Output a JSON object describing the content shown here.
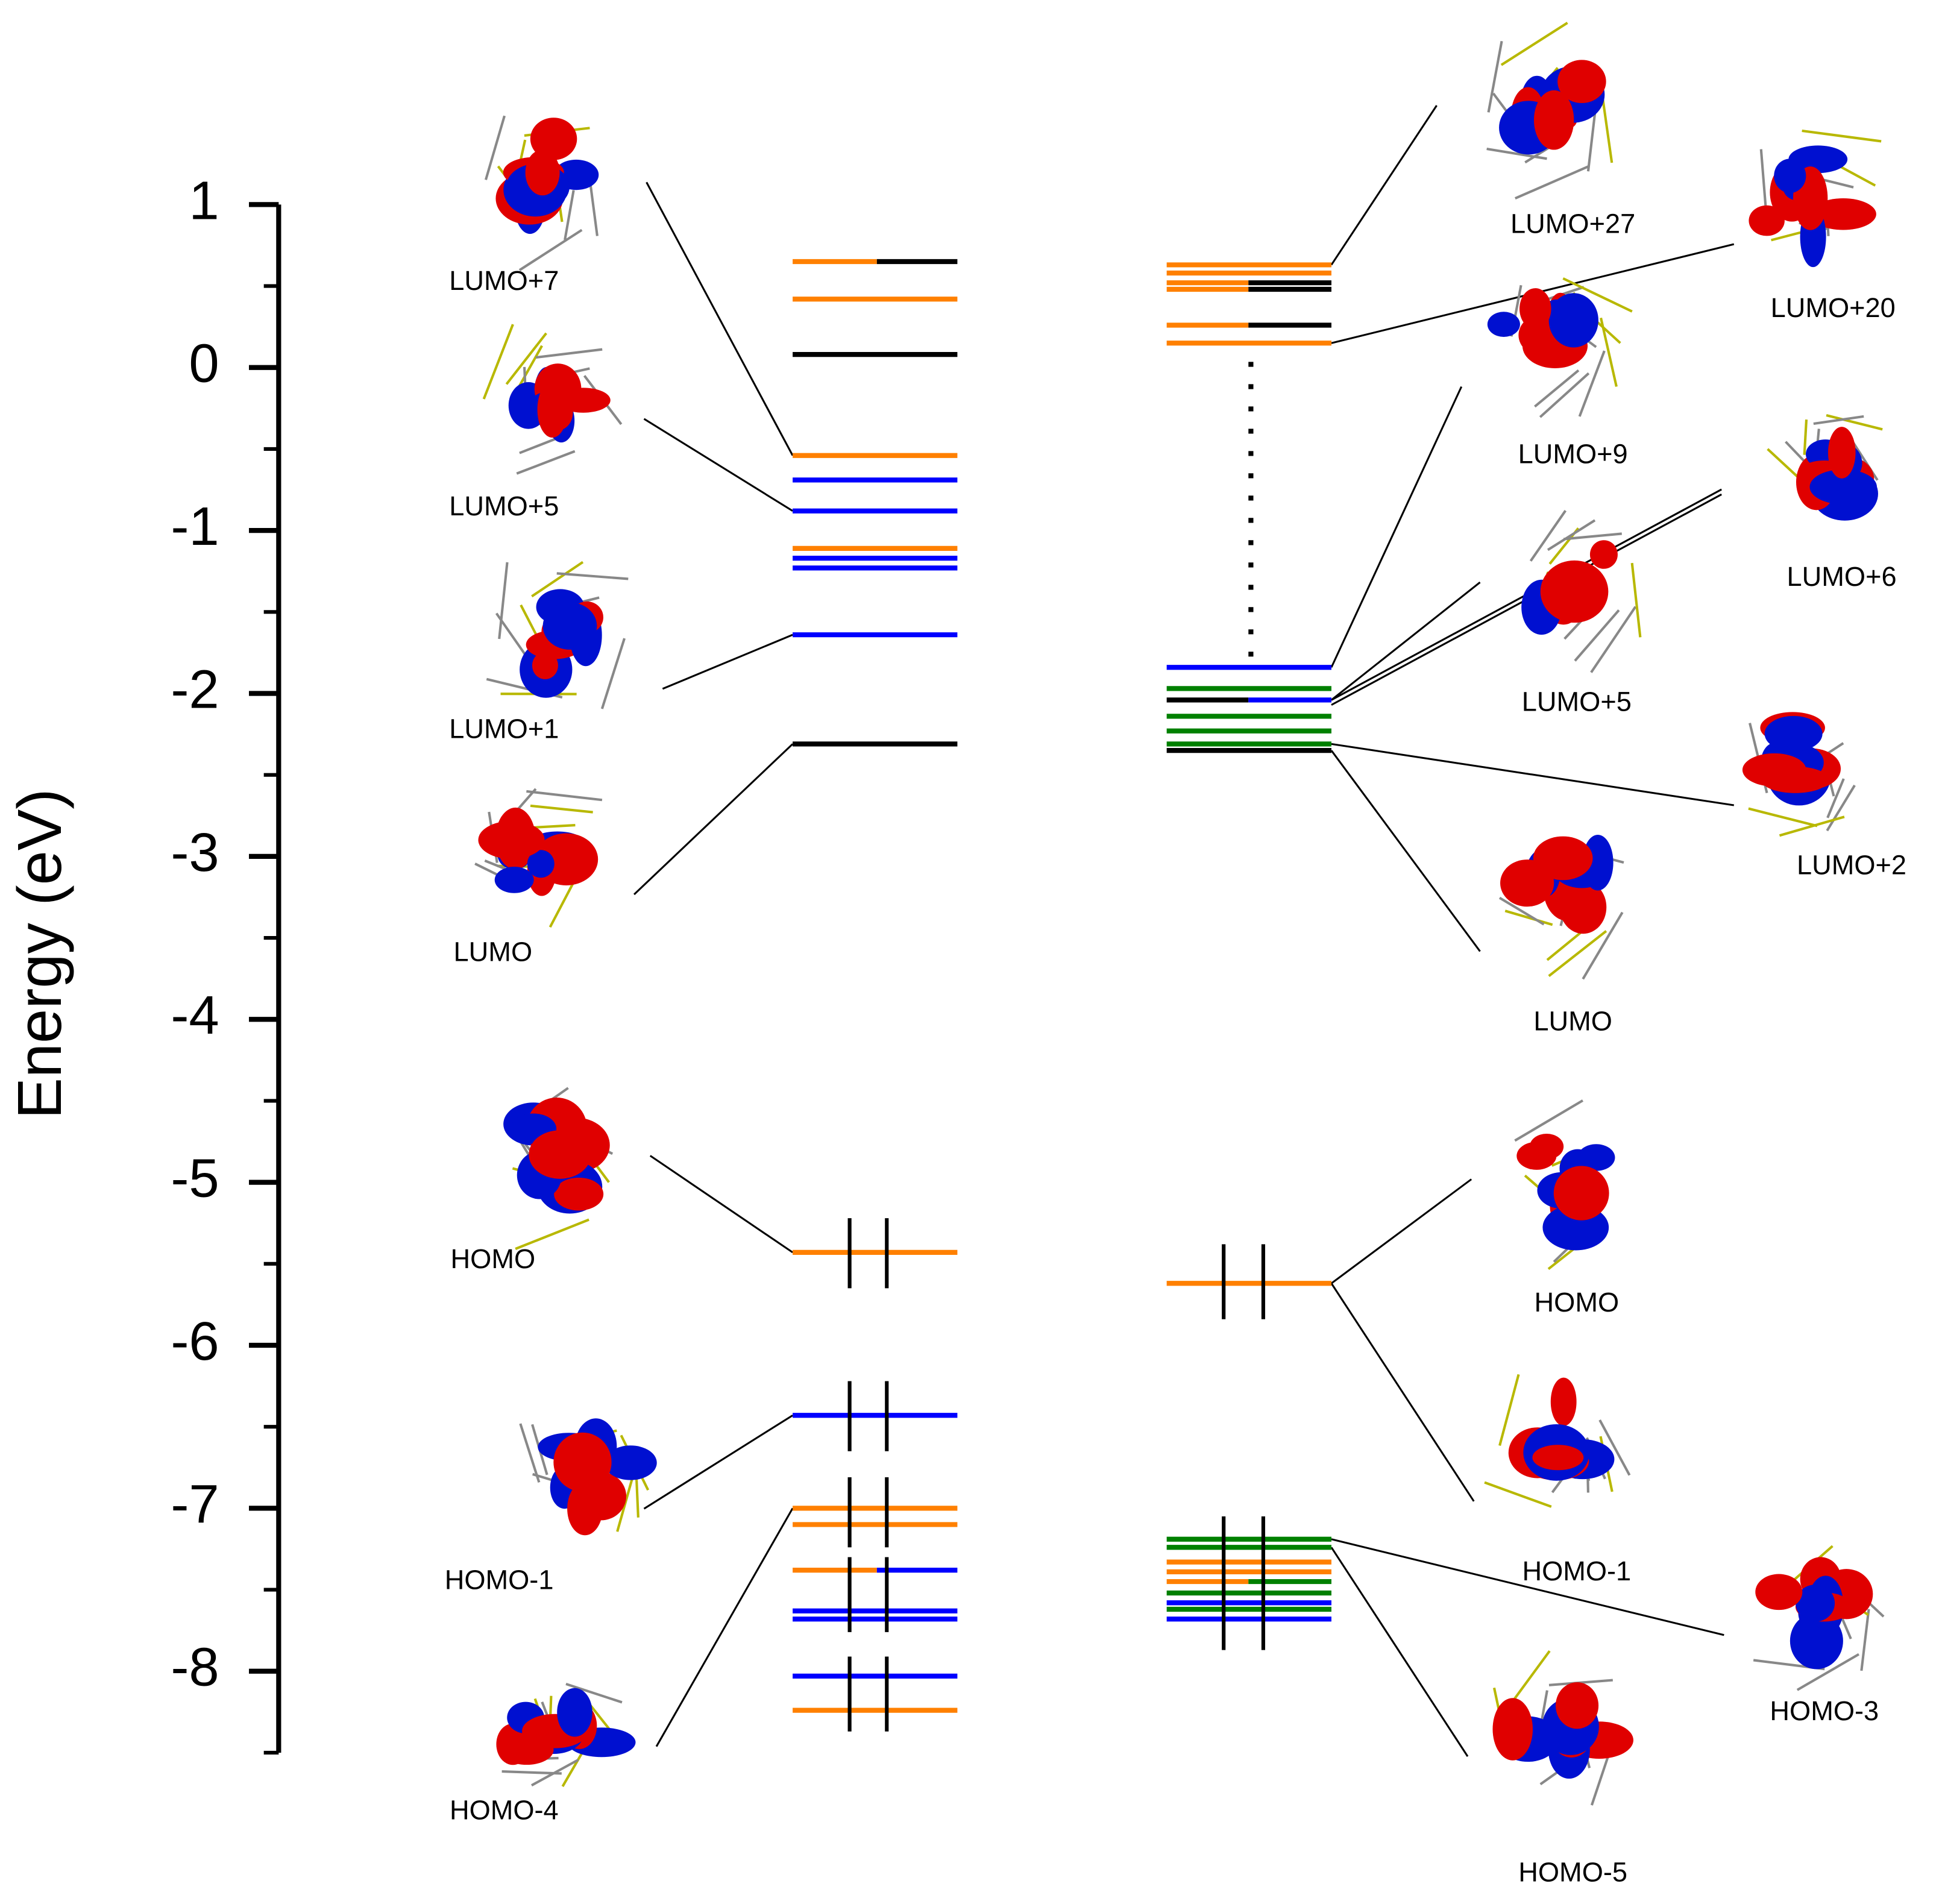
{
  "chart_data": {
    "type": "energy-levels",
    "ylabel": "Energy (eV)",
    "ylim": [
      -8.5,
      1
    ],
    "yticks": [
      1,
      0,
      -1,
      -2,
      -3,
      -4,
      -5,
      -6,
      -7,
      -8
    ],
    "yminorticks": [
      0.5,
      -0.5,
      -1.5,
      -2.5,
      -3.5,
      -4.5,
      -5.5,
      -6.5,
      -7.5,
      -8.5
    ],
    "columns": [
      {
        "levels": [
          {
            "energy": 0.65,
            "colors": [
              "#ff8000",
              "#000000"
            ]
          },
          {
            "energy": 0.42,
            "color": "#ff8000"
          },
          {
            "energy": 0.08,
            "color": "#000000"
          },
          {
            "energy": -0.54,
            "color": "#ff8000"
          },
          {
            "energy": -0.69,
            "color": "#0000ff"
          },
          {
            "energy": -0.88,
            "color": "#0000ff"
          },
          {
            "energy": -1.11,
            "color": "#ff8000"
          },
          {
            "energy": -1.17,
            "color": "#0000ff"
          },
          {
            "energy": -1.23,
            "color": "#0000ff"
          },
          {
            "energy": -1.64,
            "color": "#0000ff"
          },
          {
            "energy": -2.31,
            "color": "#000000"
          },
          {
            "energy": -5.43,
            "color": "#ff8000"
          },
          {
            "energy": -6.43,
            "color": "#0000ff"
          },
          {
            "energy": -7.0,
            "color": "#ff8000"
          },
          {
            "energy": -7.1,
            "color": "#ff8000"
          },
          {
            "energy": -7.38,
            "colors": [
              "#ff8000",
              "#0000ff"
            ]
          },
          {
            "energy": -7.63,
            "color": "#0000ff"
          },
          {
            "energy": -7.68,
            "color": "#0000ff"
          },
          {
            "energy": -8.03,
            "color": "#0000ff"
          },
          {
            "energy": -8.24,
            "color": "#ff8000"
          }
        ],
        "electron_pairs": [
          [
            -5.22,
            -5.65
          ],
          [
            -6.22,
            -6.65
          ],
          [
            -6.81,
            -7.24
          ],
          [
            -7.3,
            -7.76
          ],
          [
            -7.91,
            -8.37
          ]
        ],
        "orbitals": [
          "LUMO+7",
          "LUMO+5",
          "LUMO+1",
          "LUMO",
          "HOMO",
          "HOMO-1",
          "HOMO-4"
        ]
      },
      {
        "levels": [
          {
            "energy": 0.63,
            "color": "#ff8000"
          },
          {
            "energy": 0.58,
            "color": "#ff8000"
          },
          {
            "energy": 0.52,
            "colors": [
              "#ff8000",
              "#000000"
            ]
          },
          {
            "energy": 0.48,
            "colors": [
              "#ff8000",
              "#000000"
            ]
          },
          {
            "energy": 0.26,
            "colors": [
              "#ff8000",
              "#000000"
            ]
          },
          {
            "energy": 0.15,
            "color": "#ff8000"
          },
          {
            "energy": -1.84,
            "color": "#0000ff"
          },
          {
            "energy": -1.97,
            "color": "#008000"
          },
          {
            "energy": -2.04,
            "colors": [
              "#000000",
              "#0000ff"
            ]
          },
          {
            "energy": -2.14,
            "color": "#008000"
          },
          {
            "energy": -2.23,
            "color": "#008000"
          },
          {
            "energy": -2.31,
            "color": "#008000"
          },
          {
            "energy": -2.35,
            "color": "#000000"
          },
          {
            "energy": -5.62,
            "color": "#ff8000"
          },
          {
            "energy": -7.19,
            "color": "#008000"
          },
          {
            "energy": -7.24,
            "color": "#008000"
          },
          {
            "energy": -7.33,
            "color": "#ff8000"
          },
          {
            "energy": -7.39,
            "color": "#ff8000"
          },
          {
            "energy": -7.45,
            "colors": [
              "#ff8000",
              "#008000"
            ]
          },
          {
            "energy": -7.52,
            "color": "#008000"
          },
          {
            "energy": -7.58,
            "color": "#0000ff"
          },
          {
            "energy": -7.62,
            "color": "#008000"
          },
          {
            "energy": -7.68,
            "color": "#0000ff"
          }
        ],
        "electron_pairs": [
          [
            -5.38,
            -5.84
          ],
          [
            -7.05,
            -7.87
          ]
        ],
        "orbitals": [
          "LUMO+27",
          "LUMO+20",
          "LUMO+9",
          "LUMO+6",
          "LUMO+5",
          "LUMO+2",
          "LUMO",
          "HOMO",
          "HOMO-1",
          "HOMO-3",
          "HOMO-5"
        ]
      }
    ]
  }
}
